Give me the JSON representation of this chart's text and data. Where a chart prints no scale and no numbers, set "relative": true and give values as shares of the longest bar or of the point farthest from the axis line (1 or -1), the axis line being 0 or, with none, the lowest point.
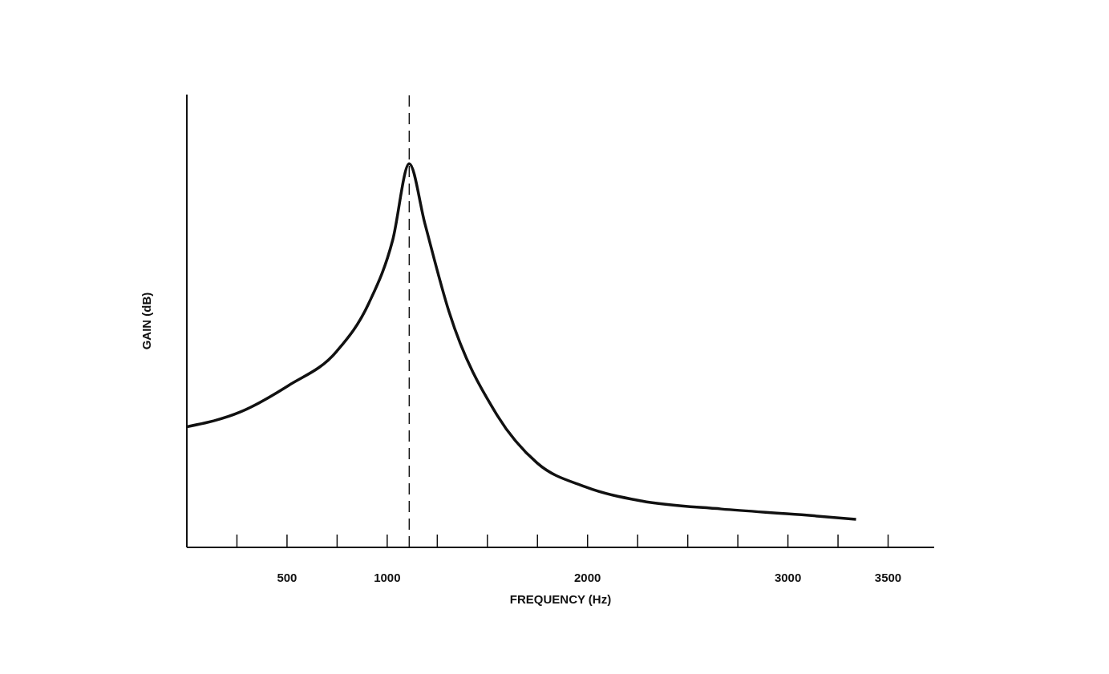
{
  "chart_data": {
    "type": "line",
    "xlabel": "FREQUENCY (Hz)",
    "ylabel": "GAIN (dB)",
    "relative": true,
    "color": "#111111",
    "x": [
      0,
      268,
      508,
      748,
      908,
      1028,
      1110,
      1188,
      1308,
      1548,
      1748,
      1988,
      2268,
      2668,
      3068,
      3340
    ],
    "values": [
      0.314,
      0.353,
      0.422,
      0.511,
      0.636,
      0.802,
      1.0,
      0.844,
      0.615,
      0.345,
      0.22,
      0.158,
      0.121,
      0.1,
      0.085,
      0.073
    ],
    "xlim": [
      0,
      3730
    ],
    "xticks": [
      {
        "value": 250,
        "label": null
      },
      500,
      {
        "value": 750,
        "label": null
      },
      1000,
      {
        "value": 1250,
        "label": null
      },
      {
        "value": 1500,
        "label": null
      },
      {
        "value": 1750,
        "label": null
      },
      2000,
      {
        "value": 2250,
        "label": null
      },
      {
        "value": 2500,
        "label": null
      },
      {
        "value": 2750,
        "label": null
      },
      3000,
      {
        "value": 3250,
        "label": null
      },
      3500
    ],
    "ref_lines": [
      {
        "axis": "x",
        "value": 1110,
        "line_style": "dashed"
      }
    ],
    "grid": false,
    "legend": false,
    "marker": "none",
    "line_style": "solid"
  }
}
